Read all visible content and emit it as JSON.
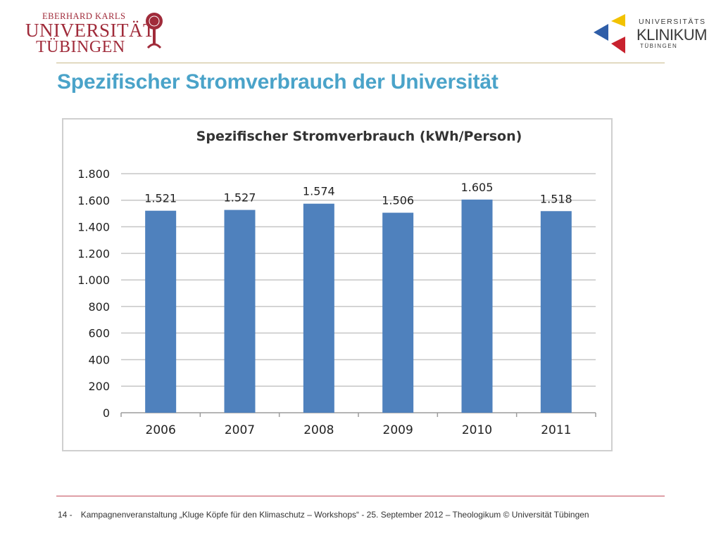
{
  "header": {
    "logo_left": {
      "line1": "EBERHARD KARLS",
      "line2": "UNIVERSITÄT",
      "line3": "TÜBINGEN",
      "color": "#a02b3a"
    },
    "logo_right": {
      "line1": "UNIVERSITÄTS",
      "line2": "KLINIKUM",
      "line3": "TÜBINGEN",
      "colors": [
        "#f2c200",
        "#2f5ea8",
        "#c8222e"
      ]
    }
  },
  "slide": {
    "title": "Spezifischer Stromverbrauch der Universität",
    "title_color": "#4aa3c9"
  },
  "chart_data": {
    "type": "bar",
    "title": "Spezifischer Stromverbrauch (kWh/Person)",
    "categories": [
      "2006",
      "2007",
      "2008",
      "2009",
      "2010",
      "2011"
    ],
    "values": [
      1521,
      1527,
      1574,
      1506,
      1605,
      1518
    ],
    "data_labels": [
      "1.521",
      "1.527",
      "1.574",
      "1.506",
      "1.605",
      "1.518"
    ],
    "ylim": [
      0,
      1800
    ],
    "yticks": [
      0,
      200,
      400,
      600,
      800,
      1000,
      1200,
      1400,
      1600,
      1800
    ],
    "ytick_labels": [
      "0",
      "200",
      "400",
      "600",
      "800",
      "1.000",
      "1.200",
      "1.400",
      "1.600",
      "1.800"
    ],
    "grid": true,
    "bar_color": "#4f81bd",
    "legend": "none"
  },
  "footer": {
    "page_number": "14 -",
    "text": "Kampagnenveranstaltung „Kluge Köpfe für den Klimaschutz – Workshops“ - 25. September 2012 – Theologikum © Universität Tübingen"
  }
}
